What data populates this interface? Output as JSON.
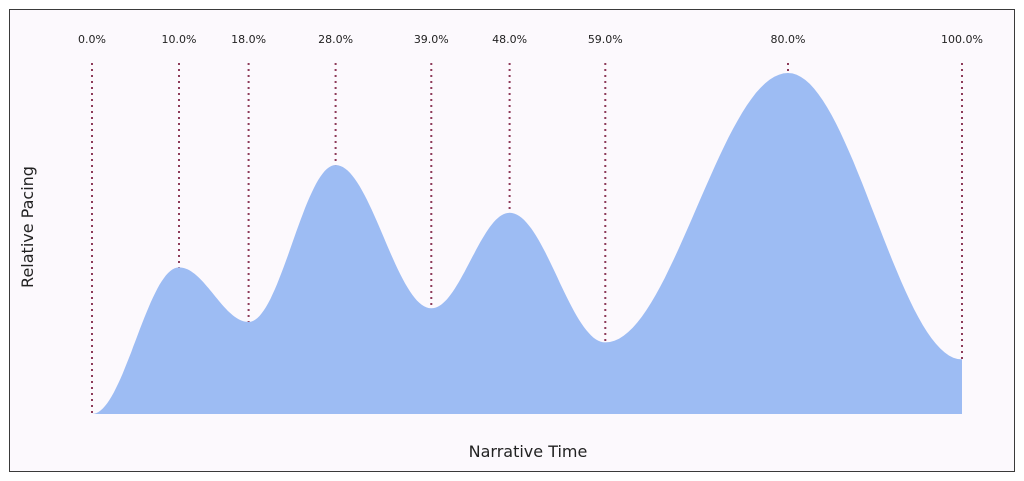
{
  "chart_data": {
    "type": "area",
    "xlabel": "Narrative Time",
    "ylabel": "Relative Pacing",
    "xlim": [
      0,
      100
    ],
    "ylim": [
      0,
      1
    ],
    "points": [
      {
        "x": 0,
        "y": 0.0,
        "label": "0.0%"
      },
      {
        "x": 10,
        "y": 0.43,
        "label": "10.0%"
      },
      {
        "x": 18,
        "y": 0.27,
        "label": "18.0%"
      },
      {
        "x": 28,
        "y": 0.73,
        "label": "28.0%"
      },
      {
        "x": 39,
        "y": 0.31,
        "label": "39.0%"
      },
      {
        "x": 48,
        "y": 0.59,
        "label": "48.0%"
      },
      {
        "x": 59,
        "y": 0.21,
        "label": "59.0%"
      },
      {
        "x": 80,
        "y": 1.0,
        "label": "80.0%"
      },
      {
        "x": 100,
        "y": 0.16,
        "label": "100.0%"
      }
    ],
    "colors": {
      "fill": "#9dbcf3",
      "marker": "#8e3b59",
      "background": "#fcf9fd"
    }
  }
}
